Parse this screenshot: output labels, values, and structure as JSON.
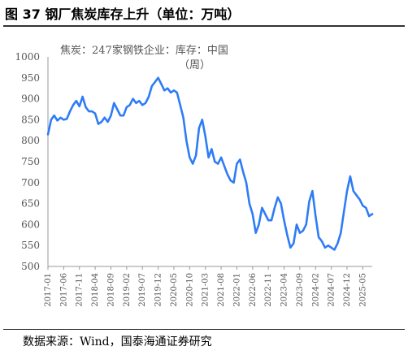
{
  "header": {
    "title": "图 37  钢厂焦炭库存上升（单位：万吨）"
  },
  "footer": {
    "source": "数据来源：Wind，国泰海通证券研究"
  },
  "chart_data": {
    "type": "line",
    "series": [
      {
        "name": "焦炭：247家钢铁企业：库存：中国（周）",
        "unit": "万吨",
        "color": "#2e7cf6",
        "points": [
          [
            "2017-01",
            815
          ],
          [
            "2017-02",
            850
          ],
          [
            "2017-03",
            860
          ],
          [
            "2017-04",
            848
          ],
          [
            "2017-05",
            855
          ],
          [
            "2017-06",
            850
          ],
          [
            "2017-07",
            852
          ],
          [
            "2017-08",
            870
          ],
          [
            "2017-09",
            885
          ],
          [
            "2017-10",
            895
          ],
          [
            "2017-11",
            882
          ],
          [
            "2017-12",
            905
          ],
          [
            "2018-01",
            880
          ],
          [
            "2018-02",
            870
          ],
          [
            "2018-03",
            870
          ],
          [
            "2018-04",
            865
          ],
          [
            "2018-05",
            840
          ],
          [
            "2018-06",
            845
          ],
          [
            "2018-07",
            855
          ],
          [
            "2018-08",
            845
          ],
          [
            "2018-09",
            860
          ],
          [
            "2018-10",
            890
          ],
          [
            "2018-11",
            875
          ],
          [
            "2018-12",
            860
          ],
          [
            "2019-01",
            860
          ],
          [
            "2019-02",
            880
          ],
          [
            "2019-03",
            885
          ],
          [
            "2019-04",
            900
          ],
          [
            "2019-05",
            890
          ],
          [
            "2019-06",
            895
          ],
          [
            "2019-07",
            885
          ],
          [
            "2019-08",
            890
          ],
          [
            "2019-09",
            905
          ],
          [
            "2019-10",
            930
          ],
          [
            "2019-11",
            940
          ],
          [
            "2019-12",
            950
          ],
          [
            "2020-01",
            935
          ],
          [
            "2020-02",
            920
          ],
          [
            "2020-03",
            925
          ],
          [
            "2020-04",
            915
          ],
          [
            "2020-05",
            920
          ],
          [
            "2020-06",
            915
          ],
          [
            "2020-07",
            885
          ],
          [
            "2020-08",
            855
          ],
          [
            "2020-09",
            800
          ],
          [
            "2020-10",
            760
          ],
          [
            "2020-11",
            745
          ],
          [
            "2020-12",
            765
          ],
          [
            "2021-01",
            830
          ],
          [
            "2021-02",
            850
          ],
          [
            "2021-03",
            810
          ],
          [
            "2021-04",
            760
          ],
          [
            "2021-05",
            780
          ],
          [
            "2021-06",
            750
          ],
          [
            "2021-07",
            745
          ],
          [
            "2021-08",
            760
          ],
          [
            "2021-09",
            740
          ],
          [
            "2021-10",
            720
          ],
          [
            "2021-11",
            705
          ],
          [
            "2021-12",
            700
          ],
          [
            "2022-01",
            745
          ],
          [
            "2022-02",
            755
          ],
          [
            "2022-03",
            725
          ],
          [
            "2022-04",
            700
          ],
          [
            "2022-05",
            650
          ],
          [
            "2022-06",
            625
          ],
          [
            "2022-07",
            580
          ],
          [
            "2022-08",
            600
          ],
          [
            "2022-09",
            640
          ],
          [
            "2022-10",
            625
          ],
          [
            "2022-11",
            610
          ],
          [
            "2022-12",
            610
          ],
          [
            "2023-01",
            640
          ],
          [
            "2023-02",
            665
          ],
          [
            "2023-03",
            650
          ],
          [
            "2023-04",
            610
          ],
          [
            "2023-05",
            575
          ],
          [
            "2023-06",
            545
          ],
          [
            "2023-07",
            555
          ],
          [
            "2023-08",
            600
          ],
          [
            "2023-09",
            580
          ],
          [
            "2023-10",
            585
          ],
          [
            "2023-11",
            600
          ],
          [
            "2023-12",
            655
          ],
          [
            "2024-01",
            680
          ],
          [
            "2024-02",
            620
          ],
          [
            "2024-03",
            570
          ],
          [
            "2024-04",
            560
          ],
          [
            "2024-05",
            545
          ],
          [
            "2024-06",
            550
          ],
          [
            "2024-07",
            545
          ],
          [
            "2024-08",
            540
          ],
          [
            "2024-09",
            555
          ],
          [
            "2024-10",
            580
          ],
          [
            "2024-11",
            630
          ],
          [
            "2024-12",
            680
          ],
          [
            "2025-01",
            715
          ],
          [
            "2025-02",
            680
          ],
          [
            "2025-03",
            670
          ],
          [
            "2025-04",
            660
          ],
          [
            "2025-05",
            645
          ],
          [
            "2025-06",
            640
          ],
          [
            "2025-07",
            620
          ],
          [
            "2025-08",
            625
          ]
        ]
      }
    ],
    "y_axis": {
      "min": 500,
      "max": 1000,
      "step": 50
    },
    "x_axis": {
      "ticks": [
        "2017-01",
        "2017-06",
        "2017-11",
        "2018-04",
        "2018-09",
        "2019-02",
        "2019-07",
        "2019-12",
        "2020-05",
        "2020-10",
        "2021-03",
        "2021-08",
        "2022-01",
        "2022-06",
        "2022-11",
        "2023-04",
        "2023-09",
        "2024-02",
        "2024-07",
        "2024-12",
        "2025-05"
      ],
      "range": [
        "2017-01",
        "2025-08"
      ]
    },
    "grid": false,
    "legend": "top-left inside"
  }
}
